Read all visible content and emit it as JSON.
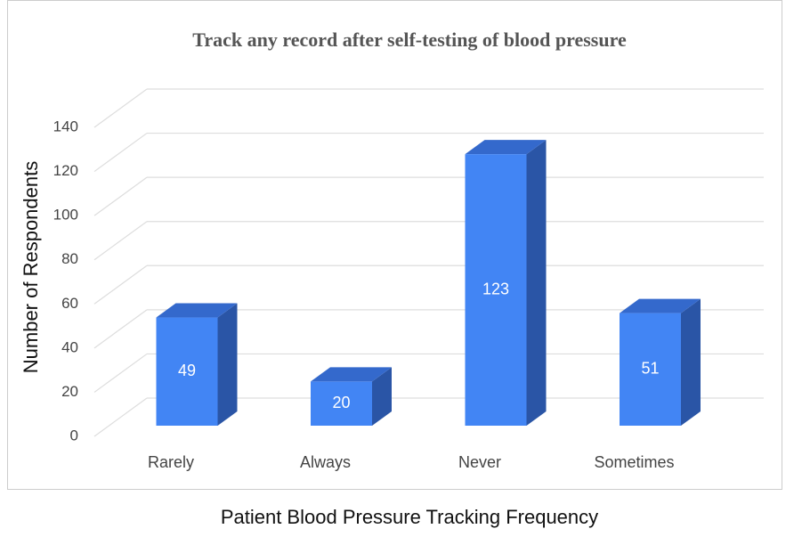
{
  "chart_data": {
    "type": "bar3d",
    "title": "Track any record after self-testing of blood pressure",
    "x_label": "Patient Blood Pressure Tracking Frequency",
    "y_label": "Number of Respondents",
    "categories": [
      "Rarely",
      "Always",
      "Never",
      "Sometimes"
    ],
    "values": [
      49,
      20,
      123,
      51
    ],
    "color": "#4285f4",
    "ylim": [
      0,
      140
    ],
    "yticks": [
      0,
      20,
      40,
      60,
      80,
      100,
      120,
      140
    ],
    "grid": true
  }
}
